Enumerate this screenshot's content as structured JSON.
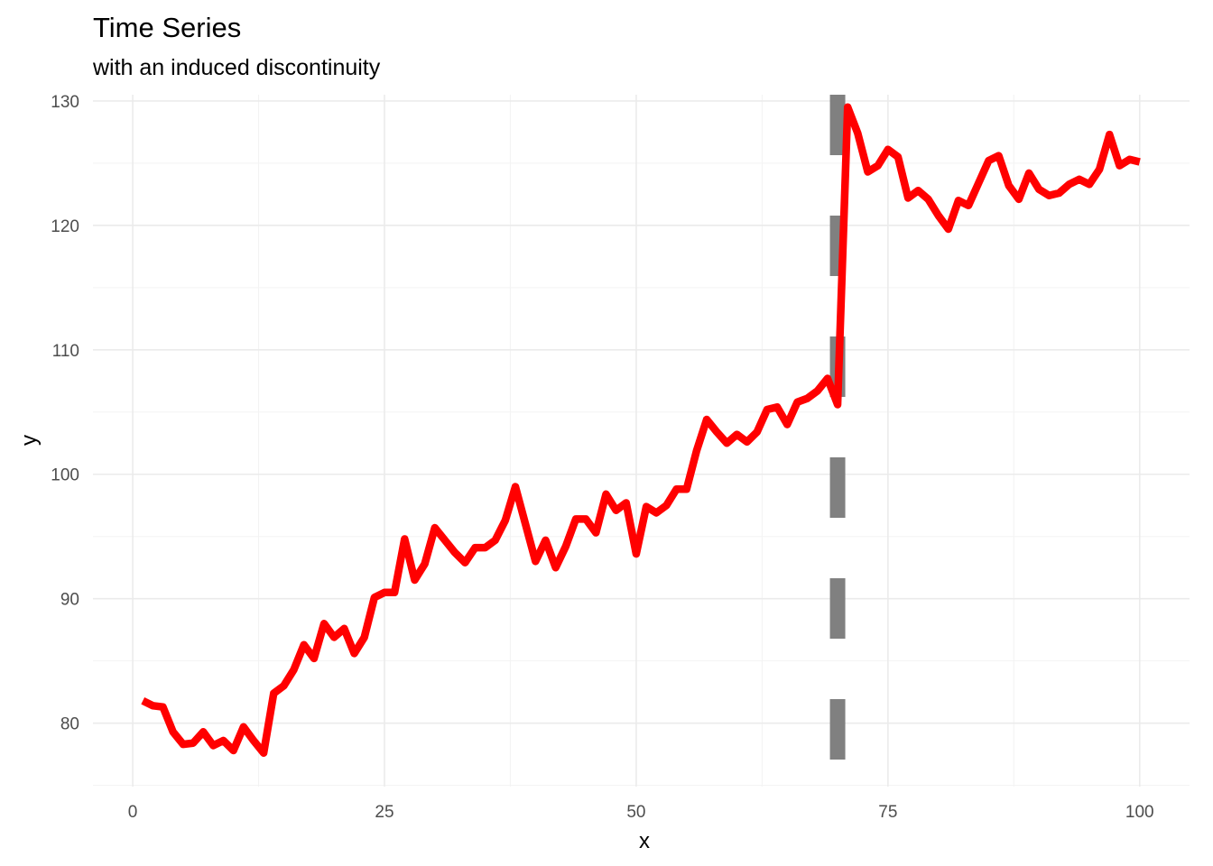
{
  "chart_data": {
    "type": "line",
    "title": "Time Series",
    "subtitle": "with an induced discontinuity",
    "xlabel": "x",
    "ylabel": "y",
    "xlim": [
      -3.95,
      104.95
    ],
    "ylim": [
      74.9,
      130.5
    ],
    "xticks": [
      0,
      25,
      50,
      75,
      100
    ],
    "yticks": [
      80,
      90,
      100,
      110,
      120,
      130
    ],
    "grid": true,
    "vline": {
      "x": 70,
      "style": "dashed",
      "color": "#808080"
    },
    "series": [
      {
        "color": "#ff0000",
        "x": [
          1,
          2,
          3,
          4,
          5,
          6,
          7,
          8,
          9,
          10,
          11,
          12,
          13,
          14,
          15,
          16,
          17,
          18,
          19,
          20,
          21,
          22,
          23,
          24,
          25,
          26,
          27,
          28,
          29,
          30,
          31,
          32,
          33,
          34,
          35,
          36,
          37,
          38,
          39,
          40,
          41,
          42,
          43,
          44,
          45,
          46,
          47,
          48,
          49,
          50,
          51,
          52,
          53,
          54,
          55,
          56,
          57,
          58,
          59,
          60,
          61,
          62,
          63,
          64,
          65,
          66,
          67,
          68,
          69,
          70,
          71,
          72,
          73,
          74,
          75,
          76,
          77,
          78,
          79,
          80,
          81,
          82,
          83,
          84,
          85,
          86,
          87,
          88,
          89,
          90,
          91,
          92,
          93,
          94,
          95,
          96,
          97,
          98,
          99,
          100
        ],
        "y": [
          81.8,
          81.4,
          81.3,
          79.3,
          78.3,
          78.4,
          79.3,
          78.2,
          78.6,
          77.8,
          79.7,
          78.6,
          77.6,
          82.4,
          83.0,
          84.3,
          86.3,
          85.2,
          88.0,
          86.9,
          87.6,
          85.6,
          86.9,
          90.1,
          90.5,
          90.5,
          94.8,
          91.5,
          92.8,
          95.7,
          94.7,
          93.7,
          92.9,
          94.1,
          94.1,
          94.7,
          96.3,
          99.0,
          96.0,
          93.0,
          94.7,
          92.5,
          94.2,
          96.4,
          96.4,
          95.3,
          98.4,
          97.1,
          97.7,
          93.6,
          97.4,
          96.9,
          97.5,
          98.8,
          98.8,
          101.9,
          104.4,
          103.4,
          102.5,
          103.2,
          102.6,
          103.4,
          105.2,
          105.4,
          104.0,
          105.8,
          106.1,
          106.7,
          107.7,
          105.6,
          129.5,
          127.4,
          124.3,
          124.8,
          126.1,
          125.5,
          122.2,
          122.8,
          122.1,
          120.8,
          119.7,
          122.0,
          121.6,
          123.4,
          125.2,
          125.6,
          123.2,
          122.1,
          124.2,
          122.9,
          122.4,
          122.6,
          123.3,
          123.7,
          123.3,
          124.5,
          127.3,
          124.8,
          125.3,
          125.1
        ]
      }
    ]
  }
}
